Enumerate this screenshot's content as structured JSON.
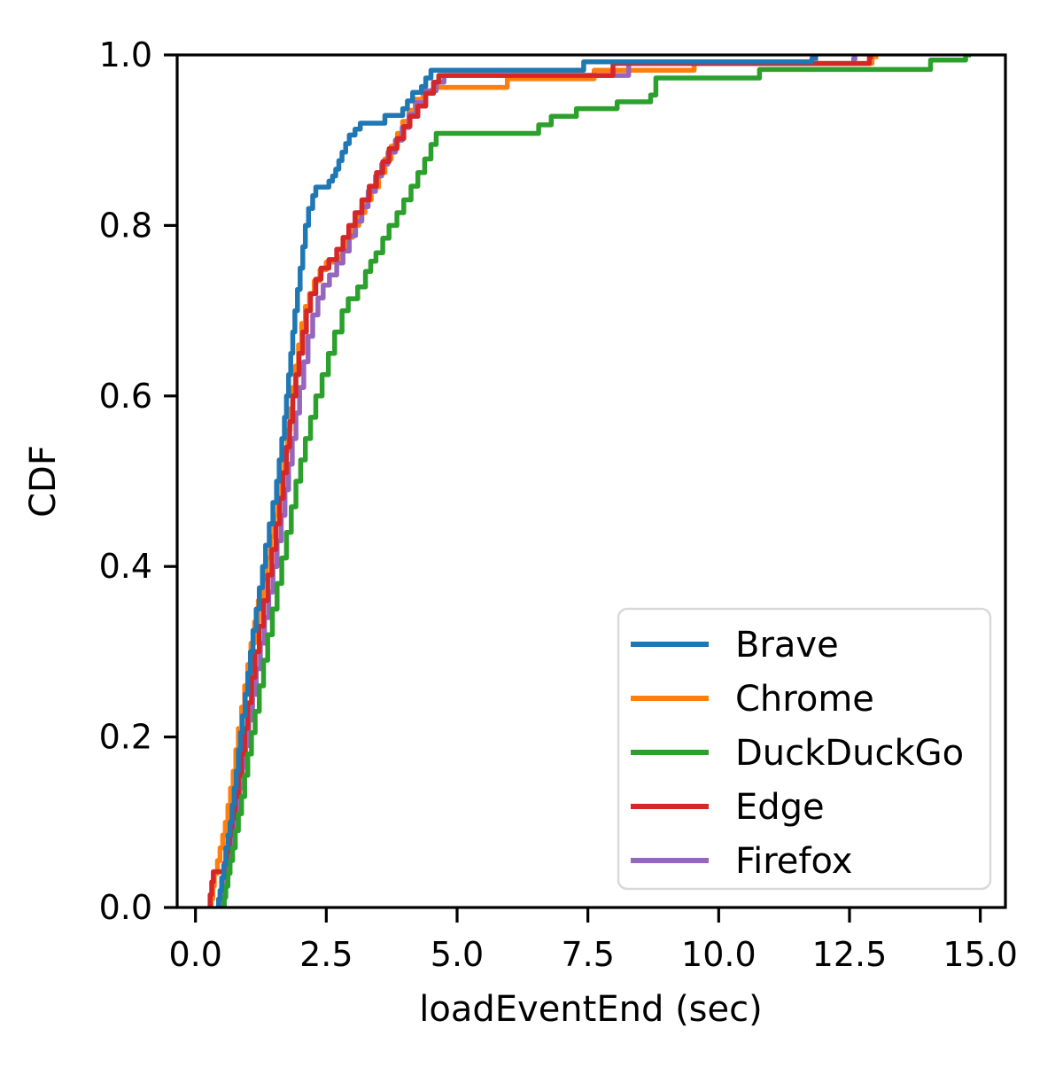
{
  "chart_data": {
    "type": "line",
    "subtype": "empirical-cdf-step",
    "title": "",
    "xlabel": "loadEventEnd (sec)",
    "ylabel": "CDF",
    "xlim": [
      -0.35,
      15.48
    ],
    "ylim": [
      0,
      1
    ],
    "x_ticks": [
      0.0,
      2.5,
      5.0,
      7.5,
      10.0,
      12.5,
      15.0
    ],
    "x_tick_labels": [
      "0.0",
      "2.5",
      "5.0",
      "7.5",
      "10.0",
      "12.5",
      "15.0"
    ],
    "y_ticks": [
      0.0,
      0.2,
      0.4,
      0.6,
      0.8,
      1.0
    ],
    "y_tick_labels": [
      "0.0",
      "0.2",
      "0.4",
      "0.6",
      "0.8",
      "1.0"
    ],
    "grid": false,
    "legend_position": "lower right",
    "axis_color": "#000000",
    "legend_border_color": "#d9d9d9",
    "draw_order": [
      "Chrome",
      "Firefox",
      "Edge",
      "DuckDuckGo",
      "Brave"
    ],
    "series": [
      {
        "name": "Brave",
        "color": "#1f77b4",
        "points": [
          [
            0.44,
            0.01
          ],
          [
            0.47,
            0.02
          ],
          [
            0.5,
            0.035
          ],
          [
            0.54,
            0.05
          ],
          [
            0.58,
            0.07
          ],
          [
            0.62,
            0.085
          ],
          [
            0.66,
            0.1
          ],
          [
            0.7,
            0.12
          ],
          [
            0.74,
            0.14
          ],
          [
            0.78,
            0.16
          ],
          [
            0.82,
            0.185
          ],
          [
            0.86,
            0.205
          ],
          [
            0.9,
            0.225
          ],
          [
            0.95,
            0.25
          ],
          [
            1.0,
            0.275
          ],
          [
            1.05,
            0.3
          ],
          [
            1.1,
            0.325
          ],
          [
            1.16,
            0.35
          ],
          [
            1.22,
            0.375
          ],
          [
            1.28,
            0.4
          ],
          [
            1.34,
            0.425
          ],
          [
            1.41,
            0.45
          ],
          [
            1.48,
            0.475
          ],
          [
            1.55,
            0.5
          ],
          [
            1.6,
            0.525
          ],
          [
            1.65,
            0.55
          ],
          [
            1.7,
            0.575
          ],
          [
            1.74,
            0.6
          ],
          [
            1.78,
            0.625
          ],
          [
            1.82,
            0.65
          ],
          [
            1.86,
            0.675
          ],
          [
            1.9,
            0.7
          ],
          [
            1.95,
            0.725
          ],
          [
            2.0,
            0.75
          ],
          [
            2.05,
            0.775
          ],
          [
            2.1,
            0.8
          ],
          [
            2.16,
            0.82
          ],
          [
            2.24,
            0.835
          ],
          [
            2.3,
            0.845
          ],
          [
            2.55,
            0.852
          ],
          [
            2.62,
            0.858
          ],
          [
            2.68,
            0.866
          ],
          [
            2.74,
            0.876
          ],
          [
            2.8,
            0.886
          ],
          [
            2.87,
            0.896
          ],
          [
            2.94,
            0.906
          ],
          [
            3.05,
            0.913
          ],
          [
            3.15,
            0.92
          ],
          [
            3.62,
            0.929
          ],
          [
            3.96,
            0.937
          ],
          [
            4.05,
            0.946
          ],
          [
            4.15,
            0.956
          ],
          [
            4.32,
            0.963
          ],
          [
            4.4,
            0.973
          ],
          [
            4.5,
            0.982
          ],
          [
            7.42,
            0.992
          ],
          [
            11.78,
            0.996
          ],
          [
            11.9,
            0.996
          ]
        ]
      },
      {
        "name": "Chrome",
        "color": "#ff7f0e",
        "points": [
          [
            0.3,
            0.01
          ],
          [
            0.33,
            0.025
          ],
          [
            0.36,
            0.04
          ],
          [
            0.42,
            0.055
          ],
          [
            0.47,
            0.07
          ],
          [
            0.52,
            0.085
          ],
          [
            0.57,
            0.1
          ],
          [
            0.62,
            0.12
          ],
          [
            0.67,
            0.14
          ],
          [
            0.72,
            0.16
          ],
          [
            0.77,
            0.185
          ],
          [
            0.82,
            0.21
          ],
          [
            0.88,
            0.235
          ],
          [
            0.94,
            0.26
          ],
          [
            1.0,
            0.285
          ],
          [
            1.06,
            0.31
          ],
          [
            1.13,
            0.335
          ],
          [
            1.2,
            0.36
          ],
          [
            1.28,
            0.385
          ],
          [
            1.36,
            0.41
          ],
          [
            1.44,
            0.435
          ],
          [
            1.51,
            0.46
          ],
          [
            1.58,
            0.485
          ],
          [
            1.64,
            0.51
          ],
          [
            1.7,
            0.535
          ],
          [
            1.76,
            0.56
          ],
          [
            1.81,
            0.585
          ],
          [
            1.86,
            0.61
          ],
          [
            1.91,
            0.635
          ],
          [
            1.97,
            0.66
          ],
          [
            2.03,
            0.685
          ],
          [
            2.1,
            0.705
          ],
          [
            2.18,
            0.72
          ],
          [
            2.27,
            0.735
          ],
          [
            2.38,
            0.748
          ],
          [
            2.5,
            0.757
          ],
          [
            2.72,
            0.763
          ],
          [
            2.8,
            0.773
          ],
          [
            2.9,
            0.786
          ],
          [
            3.0,
            0.8
          ],
          [
            3.12,
            0.815
          ],
          [
            3.24,
            0.83
          ],
          [
            3.36,
            0.845
          ],
          [
            3.5,
            0.862
          ],
          [
            3.62,
            0.878
          ],
          [
            3.74,
            0.893
          ],
          [
            3.86,
            0.908
          ],
          [
            3.96,
            0.922
          ],
          [
            4.08,
            0.935
          ],
          [
            4.2,
            0.948
          ],
          [
            4.35,
            0.956
          ],
          [
            4.55,
            0.962
          ],
          [
            5.96,
            0.972
          ],
          [
            7.62,
            0.982
          ],
          [
            9.53,
            0.99
          ],
          [
            12.93,
            0.998
          ],
          [
            13.05,
            0.998
          ]
        ]
      },
      {
        "name": "DuckDuckGo",
        "color": "#2ca02c",
        "points": [
          [
            0.55,
            0.012
          ],
          [
            0.58,
            0.025
          ],
          [
            0.62,
            0.04
          ],
          [
            0.66,
            0.055
          ],
          [
            0.71,
            0.07
          ],
          [
            0.76,
            0.09
          ],
          [
            0.82,
            0.11
          ],
          [
            0.88,
            0.13
          ],
          [
            0.94,
            0.155
          ],
          [
            1.0,
            0.18
          ],
          [
            1.07,
            0.205
          ],
          [
            1.14,
            0.23
          ],
          [
            1.22,
            0.26
          ],
          [
            1.3,
            0.29
          ],
          [
            1.38,
            0.32
          ],
          [
            1.47,
            0.35
          ],
          [
            1.56,
            0.38
          ],
          [
            1.65,
            0.41
          ],
          [
            1.74,
            0.44
          ],
          [
            1.83,
            0.47
          ],
          [
            1.92,
            0.5
          ],
          [
            2.01,
            0.525
          ],
          [
            2.1,
            0.55
          ],
          [
            2.2,
            0.575
          ],
          [
            2.3,
            0.6
          ],
          [
            2.42,
            0.625
          ],
          [
            2.54,
            0.65
          ],
          [
            2.66,
            0.675
          ],
          [
            2.8,
            0.7
          ],
          [
            2.92,
            0.714
          ],
          [
            3.1,
            0.728
          ],
          [
            3.25,
            0.746
          ],
          [
            3.35,
            0.758
          ],
          [
            3.45,
            0.768
          ],
          [
            3.58,
            0.785
          ],
          [
            3.7,
            0.8
          ],
          [
            3.85,
            0.815
          ],
          [
            3.98,
            0.83
          ],
          [
            4.12,
            0.846
          ],
          [
            4.25,
            0.862
          ],
          [
            4.38,
            0.878
          ],
          [
            4.5,
            0.895
          ],
          [
            4.6,
            0.908
          ],
          [
            6.56,
            0.918
          ],
          [
            6.8,
            0.928
          ],
          [
            7.28,
            0.937
          ],
          [
            8.06,
            0.945
          ],
          [
            8.7,
            0.953
          ],
          [
            8.8,
            0.973
          ],
          [
            10.78,
            0.983
          ],
          [
            14.05,
            0.994
          ],
          [
            14.72,
            1.0
          ],
          [
            14.82,
            1.0
          ]
        ]
      },
      {
        "name": "Edge",
        "color": "#d62728",
        "points": [
          [
            0.28,
            0.015
          ],
          [
            0.31,
            0.03
          ],
          [
            0.34,
            0.042
          ],
          [
            0.55,
            0.052
          ],
          [
            0.6,
            0.066
          ],
          [
            0.65,
            0.085
          ],
          [
            0.7,
            0.105
          ],
          [
            0.76,
            0.13
          ],
          [
            0.82,
            0.155
          ],
          [
            0.88,
            0.18
          ],
          [
            0.94,
            0.21
          ],
          [
            1.0,
            0.24
          ],
          [
            1.07,
            0.27
          ],
          [
            1.14,
            0.3
          ],
          [
            1.22,
            0.33
          ],
          [
            1.3,
            0.36
          ],
          [
            1.38,
            0.39
          ],
          [
            1.46,
            0.42
          ],
          [
            1.54,
            0.45
          ],
          [
            1.61,
            0.48
          ],
          [
            1.68,
            0.51
          ],
          [
            1.74,
            0.54
          ],
          [
            1.8,
            0.57
          ],
          [
            1.86,
            0.6
          ],
          [
            1.92,
            0.625
          ],
          [
            1.98,
            0.65
          ],
          [
            2.05,
            0.675
          ],
          [
            2.12,
            0.7
          ],
          [
            2.2,
            0.72
          ],
          [
            2.3,
            0.737
          ],
          [
            2.4,
            0.75
          ],
          [
            2.55,
            0.76
          ],
          [
            2.7,
            0.772
          ],
          [
            2.82,
            0.786
          ],
          [
            2.93,
            0.8
          ],
          [
            3.05,
            0.815
          ],
          [
            3.18,
            0.83
          ],
          [
            3.32,
            0.846
          ],
          [
            3.46,
            0.862
          ],
          [
            3.58,
            0.875
          ],
          [
            3.7,
            0.89
          ],
          [
            3.85,
            0.902
          ],
          [
            3.98,
            0.916
          ],
          [
            4.1,
            0.928
          ],
          [
            4.25,
            0.94
          ],
          [
            4.4,
            0.955
          ],
          [
            4.55,
            0.968
          ],
          [
            4.65,
            0.976
          ],
          [
            7.98,
            0.99
          ],
          [
            12.88,
            0.998
          ],
          [
            12.95,
            0.998
          ]
        ]
      },
      {
        "name": "Firefox",
        "color": "#9467bd",
        "points": [
          [
            0.5,
            0.01
          ],
          [
            0.55,
            0.03
          ],
          [
            0.6,
            0.05
          ],
          [
            0.66,
            0.07
          ],
          [
            0.72,
            0.09
          ],
          [
            0.78,
            0.115
          ],
          [
            0.84,
            0.14
          ],
          [
            0.9,
            0.165
          ],
          [
            0.96,
            0.19
          ],
          [
            1.02,
            0.22
          ],
          [
            1.09,
            0.25
          ],
          [
            1.16,
            0.28
          ],
          [
            1.24,
            0.31
          ],
          [
            1.32,
            0.34
          ],
          [
            1.4,
            0.37
          ],
          [
            1.48,
            0.4
          ],
          [
            1.56,
            0.43
          ],
          [
            1.64,
            0.46
          ],
          [
            1.71,
            0.49
          ],
          [
            1.78,
            0.52
          ],
          [
            1.85,
            0.55
          ],
          [
            1.92,
            0.58
          ],
          [
            1.99,
            0.61
          ],
          [
            2.07,
            0.64
          ],
          [
            2.15,
            0.67
          ],
          [
            2.24,
            0.695
          ],
          [
            2.34,
            0.715
          ],
          [
            2.44,
            0.73
          ],
          [
            2.56,
            0.742
          ],
          [
            2.7,
            0.756
          ],
          [
            2.82,
            0.77
          ],
          [
            2.94,
            0.788
          ],
          [
            3.06,
            0.805
          ],
          [
            3.18,
            0.822
          ],
          [
            3.3,
            0.84
          ],
          [
            3.44,
            0.858
          ],
          [
            3.56,
            0.872
          ],
          [
            3.68,
            0.886
          ],
          [
            3.82,
            0.9
          ],
          [
            3.95,
            0.915
          ],
          [
            4.08,
            0.93
          ],
          [
            4.22,
            0.944
          ],
          [
            4.4,
            0.958
          ],
          [
            4.6,
            0.968
          ],
          [
            4.75,
            0.976
          ],
          [
            8.28,
            0.99
          ],
          [
            12.58,
            0.996
          ],
          [
            12.65,
            0.996
          ]
        ]
      }
    ]
  }
}
